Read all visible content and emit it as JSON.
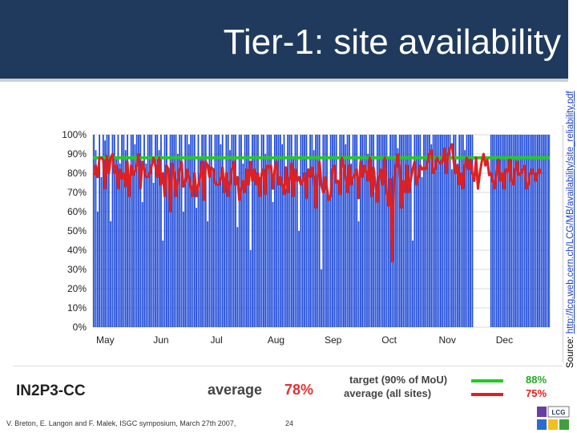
{
  "slide": {
    "title": "Tier-1: site availability",
    "source_prefix": "Source: ",
    "source_link": "http://lcg.web.cern.ch/LCG/MB/availability/site_reliability.pdf",
    "footer": "V. Breton, E. Langon and F. Malek, ISGC symposium, March 27th 2007,",
    "page_number": "24",
    "logo_text": "LCG"
  },
  "summary": {
    "site": "IN2P3-CC",
    "average_label": "average",
    "average_value": "78%",
    "target_label": "target (90% of MoU)",
    "target_value": "88%",
    "all_sites_label": "average (all sites)",
    "all_sites_value": "75%"
  },
  "colors": {
    "header": "#1f3a5c",
    "bars": "#1f4bd8",
    "target_line": "#22cc22",
    "site_line": "#e02020"
  },
  "chart_data": {
    "type": "bar",
    "ylim": [
      0,
      100
    ],
    "yticks": [
      "0%",
      "10%",
      "20%",
      "30%",
      "40%",
      "50%",
      "60%",
      "70%",
      "80%",
      "90%",
      "100%"
    ],
    "months": [
      "May",
      "Jun",
      "Jul",
      "Aug",
      "Sep",
      "Oct",
      "Nov",
      "Dec"
    ],
    "grid": true,
    "target": 88,
    "series": [
      {
        "kind": "bars",
        "values": [
          100,
          92,
          60,
          100,
          78,
          100,
          97,
          100,
          100,
          55,
          100,
          100,
          88,
          100,
          85,
          100,
          100,
          92,
          100,
          70,
          100,
          100,
          95,
          100,
          100,
          100,
          65,
          100,
          85,
          100,
          100,
          100,
          75,
          100,
          100,
          92,
          100,
          45,
          100,
          100,
          80,
          100,
          100,
          100,
          100,
          90,
          100,
          100,
          60,
          100,
          100,
          95,
          100,
          100,
          100,
          62,
          100,
          88,
          100,
          100,
          100,
          55,
          100,
          100,
          80,
          100,
          100,
          100,
          95,
          100,
          70,
          100,
          100,
          92,
          100,
          100,
          100,
          52,
          100,
          100,
          85,
          100,
          100,
          100,
          40,
          100,
          100,
          100,
          100,
          78,
          100,
          100,
          90,
          100,
          100,
          100,
          65,
          100,
          100,
          100,
          100,
          95,
          100,
          72,
          100,
          100,
          100,
          88,
          100,
          100,
          50,
          100,
          100,
          100,
          100,
          82,
          100,
          100,
          92,
          100,
          100,
          100,
          30,
          100,
          100,
          100,
          68,
          100,
          100,
          100,
          100,
          75,
          100,
          100,
          100,
          95,
          100,
          100,
          85,
          100,
          100,
          100,
          55,
          100,
          100,
          100,
          100,
          90,
          100,
          100,
          100,
          70,
          100,
          100,
          100,
          100,
          100,
          100,
          88,
          100,
          100,
          100,
          100,
          93,
          100,
          100,
          100,
          100,
          100,
          100,
          100,
          45,
          100,
          100,
          100,
          100,
          78,
          100,
          100,
          100,
          100,
          95,
          100,
          100,
          100,
          100,
          100,
          100,
          100,
          100,
          100,
          100,
          82,
          100,
          100,
          85,
          100,
          100,
          100,
          92,
          100,
          100,
          100,
          100,
          0,
          0,
          0,
          0,
          0,
          0,
          0,
          0,
          0,
          100,
          100,
          100,
          100,
          100,
          100,
          100,
          100,
          100,
          100,
          100,
          100,
          100,
          100,
          100,
          100,
          100,
          100,
          100,
          100,
          100,
          100,
          100,
          100,
          100,
          100,
          100,
          100,
          100,
          100,
          100,
          100
        ]
      },
      {
        "kind": "line",
        "values": [
          79,
          84,
          78,
          88,
          88,
          87,
          72,
          89,
          80,
          88,
          90,
          80,
          84,
          72,
          82,
          77,
          80,
          73,
          86,
          68,
          84,
          79,
          81,
          84,
          90,
          72,
          86,
          82,
          78,
          78,
          80,
          84,
          88,
          84,
          78,
          88,
          74,
          80,
          68,
          84,
          82,
          60,
          85,
          80,
          68,
          76,
          82,
          86,
          73,
          76,
          82,
          78,
          73,
          68,
          80,
          68,
          74,
          78,
          86,
          66,
          86,
          84,
          78,
          83,
          82,
          75,
          74,
          74,
          77,
          83,
          70,
          80,
          68,
          75,
          82,
          86,
          74,
          78,
          66,
          72,
          76,
          70,
          82,
          74,
          86,
          76,
          82,
          74,
          80,
          68,
          80,
          82,
          69,
          84,
          83,
          84,
          72,
          82,
          86,
          74,
          78,
          74,
          69,
          83,
          70,
          77,
          85,
          68,
          82,
          76,
          78,
          74,
          76,
          80,
          67,
          82,
          78,
          83,
          78,
          62,
          78,
          86,
          74,
          70,
          78,
          72,
          66,
          68,
          82,
          84,
          75,
          76,
          69,
          88,
          84,
          78,
          70,
          84,
          74,
          78,
          79,
          82,
          67,
          86,
          78,
          84,
          81,
          76,
          88,
          68,
          83,
          74,
          65,
          78,
          82,
          74,
          88,
          70,
          63,
          77,
          34,
          77,
          84,
          90,
          83,
          62,
          76,
          70,
          84,
          70,
          77,
          82,
          86,
          74,
          78,
          84,
          82,
          83,
          82,
          86,
          90,
          92,
          80,
          82,
          88,
          86,
          85,
          86,
          93,
          80,
          90,
          93,
          95,
          86,
          80,
          84,
          74,
          80,
          72,
          84,
          88,
          82,
          87,
          80,
          76,
          88,
          72,
          80,
          86,
          90,
          84,
          87,
          79,
          80,
          76,
          72,
          80,
          87,
          76,
          80,
          72,
          82,
          81,
          87,
          76,
          74,
          82,
          86,
          79,
          80,
          82,
          84,
          72,
          74,
          80,
          82,
          80,
          76,
          80,
          82,
          80
        ]
      }
    ]
  }
}
